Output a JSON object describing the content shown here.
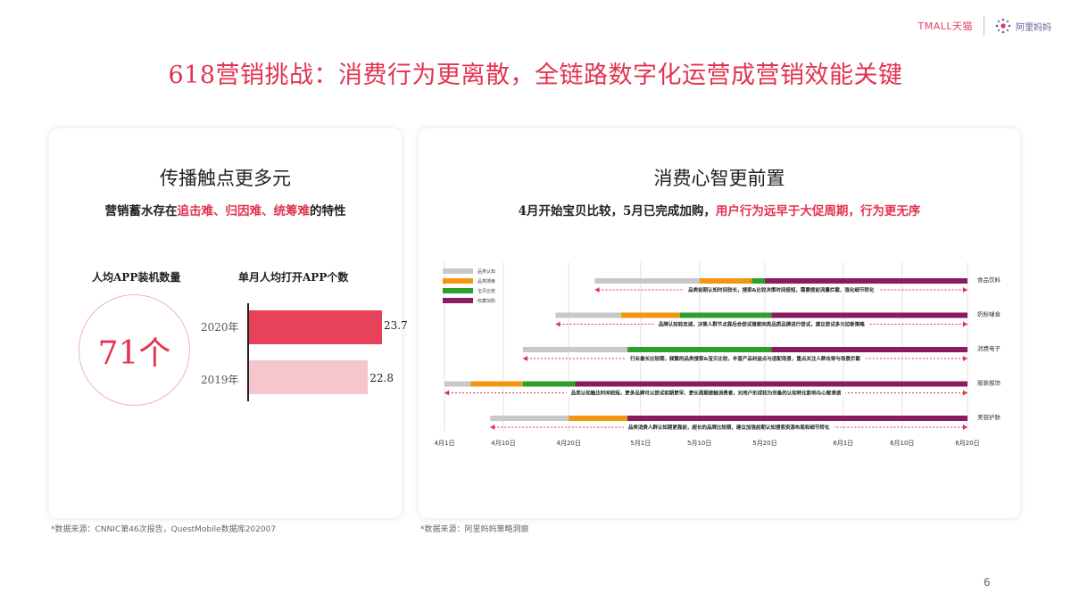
{
  "header": {
    "tmall_logo": "TMALL天猫",
    "alimama_logo": "阿里妈妈"
  },
  "title": "618营销挑战：消费行为更离散，全链路数字化运营成营销效能关键",
  "left_card": {
    "title": "传播触点更多元",
    "subtitle_pre": "营销蓄水存在",
    "subtitle_highlight": "追击难、归因难、统筹难",
    "subtitle_post": "的特性",
    "app_install_label": "人均APP装机数量",
    "app_install_value": "71个",
    "app_open_label": "单月人均打开APP个数",
    "source": "*数据来源：CNNIC第46次报告，QuestMobile数据库202007"
  },
  "right_card": {
    "title": "消费心智更前置",
    "subtitle_pre": "4月开始宝贝比较，5月已完成加购，",
    "subtitle_highlight": "用户行为远早于大促周期，行为更无序",
    "source": "*数据来源：阿里妈妈策略洞察"
  },
  "page_number": "6",
  "colors": {
    "accent": "#e23350",
    "bar_2020": "#e8415a",
    "bar_2019": "#f5c6ce",
    "phase_gray": "#c8c8c8",
    "phase_orange": "#f0960f",
    "phase_green": "#2ea02a",
    "phase_purple": "#8c1a5e"
  },
  "chart_data": [
    {
      "type": "bar",
      "title": "单月人均打开APP个数",
      "categories": [
        "2020年",
        "2019年"
      ],
      "values": [
        23.7,
        22.8
      ],
      "value_labels": [
        "23.7",
        "22.8"
      ],
      "xlim": [
        0,
        28
      ],
      "orientation": "horizontal"
    },
    {
      "type": "gantt",
      "x_ticks": [
        "4月1日",
        "4月10日",
        "4月20日",
        "5月1日",
        "5月10日",
        "5月20日",
        "6月1日",
        "6月10日",
        "6月20日"
      ],
      "x_tick_days": [
        0,
        9,
        19,
        30,
        39,
        49,
        61,
        70,
        80
      ],
      "x_range_days": [
        0,
        80
      ],
      "phases": [
        {
          "name": "品类认知",
          "color": "#c8c8c8"
        },
        {
          "name": "品类搜索",
          "color": "#f0960f"
        },
        {
          "name": "宝贝比较",
          "color": "#2ea02a"
        },
        {
          "name": "收藏加购",
          "color": "#8c1a5e"
        }
      ],
      "rows": [
        {
          "category": "食品饮料",
          "segments": [
            [
              23,
              39
            ],
            [
              39,
              47
            ],
            [
              47,
              49
            ],
            [
              49,
              80
            ]
          ],
          "note": "品类前期认知时间较长，搜索&比较决策时间极短，需要提前流量拦截，强化细节转化"
        },
        {
          "category": "奶粉辅食",
          "segments": [
            [
              17,
              27
            ],
            [
              27,
              36
            ],
            [
              36,
              50
            ],
            [
              50,
              80
            ]
          ],
          "note": "品牌认知较忠诚，决策人群节点靠后会尝试搜索同类品质品牌进行尝试，建议尝试多元拉新策略"
        },
        {
          "category": "消费电子",
          "segments": [
            [
              12,
              28
            ],
            [
              28,
              28
            ],
            [
              28,
              50
            ],
            [
              50,
              80
            ]
          ],
          "note": "行业最长比较期，频繁的品类搜索&宝贝比较，丰富产品利益点与适配场景，重点关注人群击穿与场景拦截"
        },
        {
          "category": "服装服饰",
          "segments": [
            [
              0,
              4
            ],
            [
              4,
              12
            ],
            [
              12,
              20
            ],
            [
              20,
              80
            ]
          ],
          "note": "品类认知触达时间较短，更多品牌可以尝试前期更早、更长周期接触消费者，对用户形成较为完备的认知转化影响与心智渗透"
        },
        {
          "category": "美容护肤",
          "segments": [
            [
              7,
              19
            ],
            [
              19,
              28
            ],
            [
              28,
              80
            ],
            [
              28,
              80
            ]
          ],
          "note": "品类消费人群认知期更靠前，超长的品牌比较期，建议加强前期认知搜索资源布局和细节转化"
        }
      ]
    }
  ]
}
